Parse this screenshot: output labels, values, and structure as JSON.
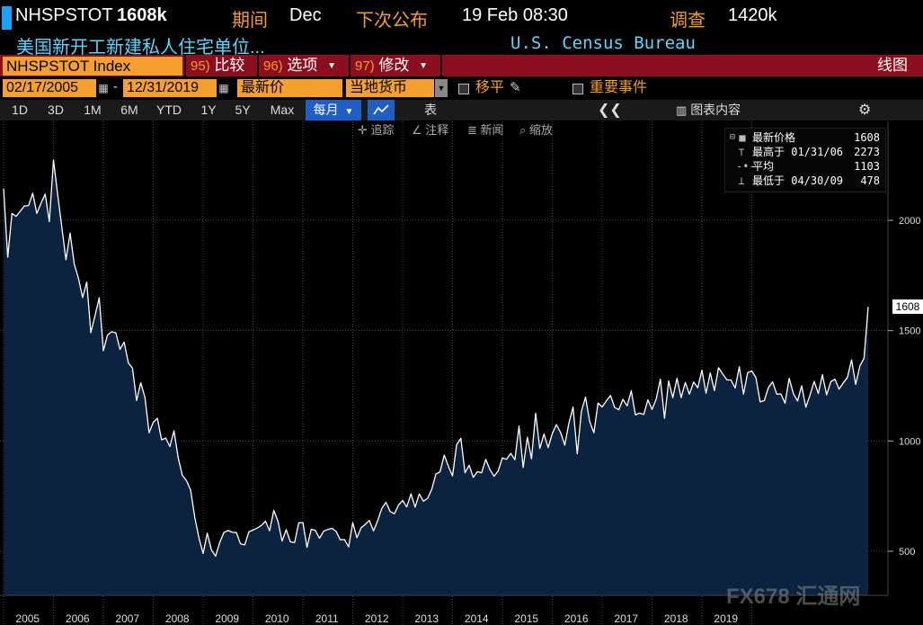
{
  "header": {
    "ticker": "NHSPSTOT",
    "value": "1608k",
    "period_label": "期间",
    "period_value": "Dec",
    "next_release_label": "下次公布",
    "next_release_value": "19 Feb 08:30",
    "survey_label": "调查",
    "survey_value": "1420k",
    "description": "美国新开工新建私人住宅单位...",
    "source": "U.S. Census Bureau"
  },
  "toolbar": {
    "index_name": "NHSPSTOT Index",
    "compare_num": "95)",
    "compare_label": "比较",
    "options_num": "96)",
    "options_label": "选项",
    "edit_num": "97)",
    "edit_label": "修改",
    "chart_type": "线图"
  },
  "date_bar": {
    "start_date": "02/17/2005",
    "end_date": "12/31/2019",
    "dash": "-",
    "price_type": "最新价",
    "currency": "当地货币",
    "pan_label": "移平",
    "events_label": "重要事件"
  },
  "range_bar": {
    "ranges": [
      "1D",
      "3D",
      "1M",
      "6M",
      "YTD",
      "1Y",
      "5Y",
      "Max"
    ],
    "frequency": "每月",
    "table_label": "表",
    "chart_content_label": "图表内容"
  },
  "tools": {
    "track": "追踪",
    "annotate": "注释",
    "news": "新闻",
    "zoom": "缩放"
  },
  "legend": {
    "last_label": "最新价格",
    "last_value": "1608",
    "high_label": "最高于 01/31/06",
    "high_value": "2273",
    "avg_label": "平均",
    "avg_value": "1103",
    "low_label": "最低于 04/30/09",
    "low_value": "478"
  },
  "last_tag": "1608",
  "watermark": "FX678 汇通网",
  "colors": {
    "line": "#ffffff",
    "area": "#0c2340",
    "toolbar_red": "#8b0f1e",
    "accent_orange": "#f5a02e",
    "accent_blue": "#1f5fc4"
  },
  "chart_data": {
    "type": "area",
    "series": [
      {
        "start": "2005-01",
        "frequency": "monthly",
        "values": [
          2144,
          1833,
          2031,
          2018,
          2041,
          2065,
          2067,
          2123,
          2031,
          2077,
          2119,
          1994,
          2273,
          2119,
          1969,
          1821,
          1942,
          1802,
          1737,
          1650,
          1720,
          1491,
          1570,
          1649,
          1409,
          1480,
          1495,
          1490,
          1415,
          1448,
          1354,
          1330,
          1183,
          1264,
          1197,
          1037,
          1084,
          1103,
          1005,
          1013,
          975,
          1046,
          923,
          844,
          820,
          777,
          652,
          560,
          490,
          582,
          505,
          478,
          540,
          585,
          594,
          586,
          585,
          534,
          529,
          588,
          596,
          605,
          617,
          636,
          593,
          685,
          636,
          546,
          598,
          543,
          539,
          629,
          630,
          518,
          600,
          594,
          559,
          591,
          599,
          604,
          590,
          552,
          553,
          520,
          630,
          561,
          606,
          622,
          640,
          592,
          640,
          695,
          722,
          680,
          670,
          709,
          730,
          701,
          760,
          700,
          760,
          727,
          740,
          781,
          850,
          860,
          936,
          885,
          841,
          983,
          1012,
          856,
          890,
          835,
          861,
          856,
          917,
          870,
          840,
          865,
          923,
          917,
          944,
          915,
          1068,
          880,
          1017,
          919,
          1126,
          966,
          1031,
          970,
          1033,
          1074,
          1038,
          981,
          1081,
          1154,
          942,
          1134,
          1199,
          1088,
          1037,
          1172,
          1154,
          1181,
          1206,
          1152,
          1141,
          1189,
          1159,
          1227,
          1118,
          1126,
          1120,
          1187,
          1143,
          1189,
          1280,
          1103,
          1272,
          1196,
          1284,
          1196,
          1265,
          1212,
          1267,
          1241,
          1321,
          1216,
          1308,
          1229,
          1332,
          1304,
          1277,
          1276,
          1240,
          1336,
          1212,
          1310,
          1317,
          1287,
          1177,
          1183,
          1242,
          1268,
          1212,
          1213,
          1171,
          1284,
          1214,
          1181,
          1250,
          1153,
          1208,
          1270,
          1215,
          1300,
          1209,
          1268,
          1280,
          1235,
          1263,
          1288,
          1368,
          1256,
          1340,
          1375,
          1608
        ]
      }
    ],
    "xlabel": "",
    "ylabel": "",
    "x_ticks": [
      "2005",
      "2006",
      "2007",
      "2008",
      "2009",
      "2010",
      "2011",
      "2012",
      "2013",
      "2014",
      "2015",
      "2016",
      "2017",
      "2018",
      "2019"
    ],
    "y_ticks": [
      500,
      1000,
      1500,
      2000
    ],
    "ylim": [
      300,
      2500
    ],
    "grid": true,
    "legend_position": "top-right"
  }
}
